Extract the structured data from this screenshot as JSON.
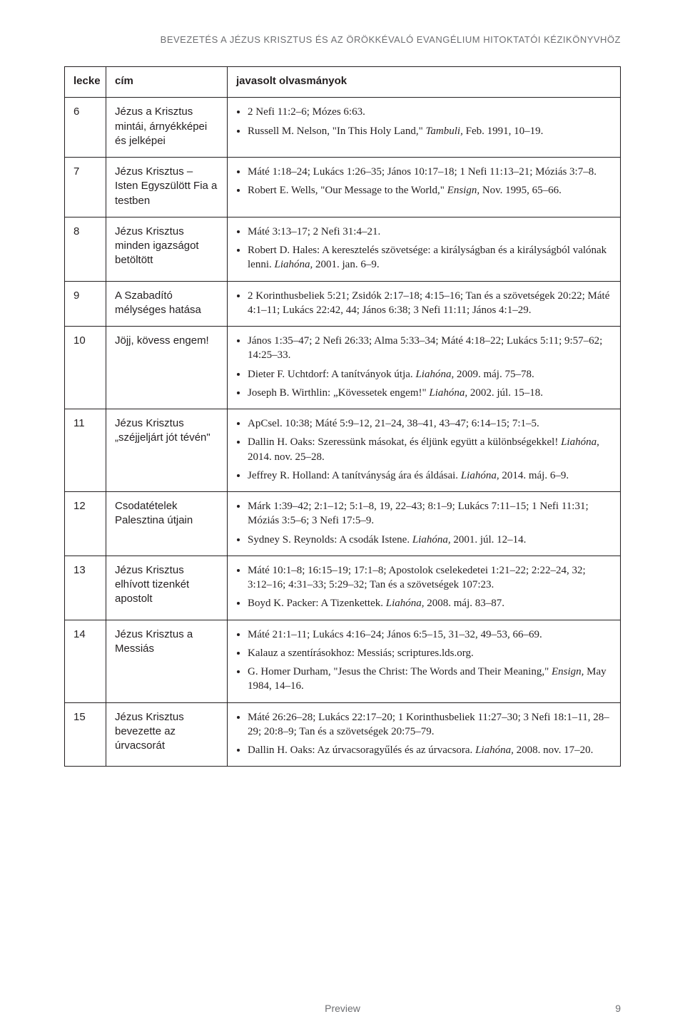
{
  "running_head": "BEVEZETÉS A JÉZUS KRISZTUS ÉS AZ ÖRÖKKÉVALÓ EVANGÉLIUM HITOKTATÓI KÉZIKÖNYVHÖZ",
  "columns": {
    "lecke": "lecke",
    "cim": "cím",
    "javasolt": "javasolt olvasmányok"
  },
  "rows": [
    {
      "num": "6",
      "title": "Jézus a Krisztus mintái, árnyékképei és jelképei",
      "items": [
        [
          {
            "t": "2 Nefi 11:2–6; Mózes 6:63."
          }
        ],
        [
          {
            "t": "Russell M. Nelson, \"In This Holy Land,\" "
          },
          {
            "t": "Tambuli,",
            "i": true
          },
          {
            "t": " Feb. 1991, 10–19."
          }
        ]
      ]
    },
    {
      "num": "7",
      "title": "Jézus Krisztus – Isten Egyszülött Fia a testben",
      "items": [
        [
          {
            "t": "Máté 1:18–24; Lukács 1:26–35; János 10:17–18; 1 Nefi 11:13–21; Móziás 3:7–8."
          }
        ],
        [
          {
            "t": "Robert E. Wells, \"Our Message to the World,\" "
          },
          {
            "t": "Ensign,",
            "i": true
          },
          {
            "t": " Nov. 1995, 65–66."
          }
        ]
      ]
    },
    {
      "num": "8",
      "title": "Jézus Krisztus minden igazságot betöltött",
      "items": [
        [
          {
            "t": "Máté 3:13–17; 2 Nefi 31:4–21."
          }
        ],
        [
          {
            "t": "Robert D. Hales: A keresztelés szövetsége: a királyságban és a királyságból valónak lenni. "
          },
          {
            "t": "Liahóna,",
            "i": true
          },
          {
            "t": " 2001. jan. 6–9."
          }
        ]
      ]
    },
    {
      "num": "9",
      "title": "A Szabadító mélységes hatása",
      "items": [
        [
          {
            "t": "2 Korinthusbeliek 5:21; Zsidók 2:17–18; 4:15–16; Tan és a szövetségek 20:22; Máté 4:1–11; Lukács 22:42, 44; János 6:38; 3 Nefi 11:11; János 4:1–29."
          }
        ]
      ]
    },
    {
      "num": "10",
      "title": "Jöjj, kövess engem!",
      "items": [
        [
          {
            "t": "János 1:35–47; 2 Nefi 26:33; Alma 5:33–34; Máté 4:18–22; Lukács 5:11; 9:57–62; 14:25–33."
          }
        ],
        [
          {
            "t": "Dieter F. Uchtdorf: A tanítványok útja. "
          },
          {
            "t": "Liahóna,",
            "i": true
          },
          {
            "t": " 2009. máj. 75–78."
          }
        ],
        [
          {
            "t": "Joseph B. Wirthlin: „Kövessetek engem!\" "
          },
          {
            "t": "Liahóna,",
            "i": true
          },
          {
            "t": " 2002. júl. 15–18."
          }
        ]
      ]
    },
    {
      "num": "11",
      "title": "Jézus Krisztus „széjjeljárt jót tévén\"",
      "items": [
        [
          {
            "t": "ApCsel. 10:38; Máté 5:9–12, 21–24, 38–41, 43–47; 6:14–15; 7:1–5."
          }
        ],
        [
          {
            "t": "Dallin H. Oaks: Szeressünk másokat, és éljünk együtt a különbségekkel! "
          },
          {
            "t": "Liahóna,",
            "i": true
          },
          {
            "t": " 2014. nov. 25–28."
          }
        ],
        [
          {
            "t": "Jeffrey R. Holland: A tanítványság ára és áldásai. "
          },
          {
            "t": "Liahóna,",
            "i": true
          },
          {
            "t": " 2014. máj. 6–9."
          }
        ]
      ]
    },
    {
      "num": "12",
      "title": "Csodatételek Palesztina útjain",
      "items": [
        [
          {
            "t": "Márk 1:39–42; 2:1–12; 5:1–8, 19, 22–43; 8:1–9; Lukács 7:11–15; 1 Nefi 11:31; Móziás 3:5–6; 3 Nefi 17:5–9."
          }
        ],
        [
          {
            "t": "Sydney S. Reynolds: A csodák Istene. "
          },
          {
            "t": "Liahóna,",
            "i": true
          },
          {
            "t": " 2001. júl. 12–14."
          }
        ]
      ]
    },
    {
      "num": "13",
      "title": "Jézus Krisztus elhívott tizenkét apostolt",
      "items": [
        [
          {
            "t": "Máté 10:1–8; 16:15–19; 17:1–8; Apostolok cselekedetei 1:21–22; 2:22–24, 32; 3:12–16; 4:31–33; 5:29–32; Tan és a szövetségek 107:23."
          }
        ],
        [
          {
            "t": "Boyd K. Packer: A Tizenkettek. "
          },
          {
            "t": "Liahóna,",
            "i": true
          },
          {
            "t": " 2008. máj. 83–87."
          }
        ]
      ]
    },
    {
      "num": "14",
      "title": "Jézus Krisztus a Messiás",
      "items": [
        [
          {
            "t": "Máté 21:1–11; Lukács 4:16–24; János 6:5–15, 31–32, 49–53, 66–69."
          }
        ],
        [
          {
            "t": "Kalauz a szentírásokhoz: Messiás; scriptures.lds.org."
          }
        ],
        [
          {
            "t": "G. Homer Durham, \"Jesus the Christ: The Words and Their Meaning,\" "
          },
          {
            "t": "Ensign,",
            "i": true
          },
          {
            "t": " May 1984, 14–16."
          }
        ]
      ]
    },
    {
      "num": "15",
      "title": "Jézus Krisztus bevezette az úrvacsorát",
      "items": [
        [
          {
            "t": "Máté 26:26–28; Lukács 22:17–20; 1 Korinthusbeliek 11:27–30; 3 Nefi 18:1–11, 28–29; 20:8–9; Tan és a szövetségek 20:75–79."
          }
        ],
        [
          {
            "t": "Dallin H. Oaks: Az úrvacsoragyűlés és az úrvacsora. "
          },
          {
            "t": "Liahóna,",
            "i": true
          },
          {
            "t": " 2008. nov. 17–20."
          }
        ]
      ]
    }
  ],
  "footer": {
    "preview": "Preview",
    "page": "9"
  }
}
